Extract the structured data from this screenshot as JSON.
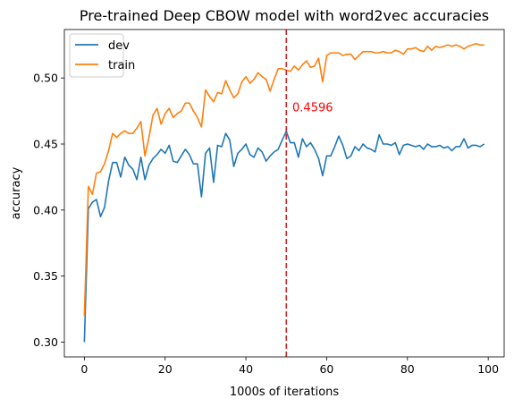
{
  "chart_data": {
    "type": "line",
    "title": "Pre-trained Deep CBOW model with word2vec accuracies",
    "xlabel": "1000s of iterations",
    "ylabel": "accuracy",
    "xlim": [
      -4.95,
      103.95
    ],
    "ylim": [
      0.2888,
      0.5367
    ],
    "xticks": [
      0,
      20,
      40,
      60,
      80,
      100
    ],
    "yticks": [
      0.3,
      0.35,
      0.4,
      0.45,
      0.5
    ],
    "xtick_labels": [
      "0",
      "20",
      "40",
      "60",
      "80",
      "100"
    ],
    "ytick_labels": [
      "0.30",
      "0.35",
      "0.40",
      "0.45",
      "0.50"
    ],
    "grid": false,
    "legend_position": "top-left",
    "x": [
      0,
      1,
      2,
      3,
      4,
      5,
      6,
      7,
      8,
      9,
      10,
      11,
      12,
      13,
      14,
      15,
      16,
      17,
      18,
      19,
      20,
      21,
      22,
      23,
      24,
      25,
      26,
      27,
      28,
      29,
      30,
      31,
      32,
      33,
      34,
      35,
      36,
      37,
      38,
      39,
      40,
      41,
      42,
      43,
      44,
      45,
      46,
      47,
      48,
      49,
      50,
      51,
      52,
      53,
      54,
      55,
      56,
      57,
      58,
      59,
      60,
      61,
      62,
      63,
      64,
      65,
      66,
      67,
      68,
      69,
      70,
      71,
      72,
      73,
      74,
      75,
      76,
      77,
      78,
      79,
      80,
      81,
      82,
      83,
      84,
      85,
      86,
      87,
      88,
      89,
      90,
      91,
      92,
      93,
      94,
      95,
      96,
      97,
      98,
      99
    ],
    "series": [
      {
        "name": "dev",
        "color": "#1f77b4",
        "values": [
          0.3,
          0.401,
          0.406,
          0.408,
          0.395,
          0.402,
          0.422,
          0.436,
          0.436,
          0.425,
          0.44,
          0.434,
          0.431,
          0.423,
          0.44,
          0.423,
          0.434,
          0.439,
          0.442,
          0.446,
          0.443,
          0.449,
          0.437,
          0.436,
          0.441,
          0.446,
          0.442,
          0.435,
          0.435,
          0.41,
          0.443,
          0.447,
          0.421,
          0.449,
          0.448,
          0.458,
          0.453,
          0.433,
          0.443,
          0.446,
          0.45,
          0.442,
          0.44,
          0.447,
          0.444,
          0.437,
          0.441,
          0.444,
          0.446,
          0.453,
          0.4596,
          0.451,
          0.451,
          0.44,
          0.454,
          0.448,
          0.451,
          0.446,
          0.439,
          0.426,
          0.441,
          0.441,
          0.448,
          0.456,
          0.449,
          0.439,
          0.441,
          0.448,
          0.445,
          0.45,
          0.447,
          0.446,
          0.444,
          0.457,
          0.45,
          0.45,
          0.449,
          0.451,
          0.442,
          0.449,
          0.45,
          0.449,
          0.448,
          0.449,
          0.446,
          0.45,
          0.448,
          0.448,
          0.449,
          0.447,
          0.448,
          0.445,
          0.448,
          0.448,
          0.454,
          0.447,
          0.449,
          0.449,
          0.448,
          0.45
        ]
      },
      {
        "name": "train",
        "color": "#ff7f0e",
        "values": [
          0.32,
          0.418,
          0.412,
          0.428,
          0.429,
          0.435,
          0.445,
          0.458,
          0.455,
          0.458,
          0.46,
          0.458,
          0.458,
          0.462,
          0.467,
          0.441,
          0.455,
          0.472,
          0.477,
          0.465,
          0.473,
          0.477,
          0.47,
          0.473,
          0.475,
          0.481,
          0.481,
          0.475,
          0.47,
          0.463,
          0.491,
          0.486,
          0.482,
          0.489,
          0.488,
          0.498,
          0.491,
          0.485,
          0.488,
          0.497,
          0.501,
          0.496,
          0.499,
          0.504,
          0.501,
          0.499,
          0.49,
          0.499,
          0.507,
          0.507,
          0.506,
          0.505,
          0.509,
          0.506,
          0.51,
          0.513,
          0.508,
          0.509,
          0.515,
          0.497,
          0.517,
          0.519,
          0.519,
          0.519,
          0.517,
          0.518,
          0.518,
          0.514,
          0.517,
          0.52,
          0.52,
          0.52,
          0.519,
          0.519,
          0.52,
          0.519,
          0.519,
          0.521,
          0.52,
          0.518,
          0.522,
          0.522,
          0.523,
          0.521,
          0.52,
          0.524,
          0.521,
          0.524,
          0.523,
          0.524,
          0.525,
          0.524,
          0.525,
          0.524,
          0.522,
          0.524,
          0.525,
          0.526,
          0.525,
          0.525
        ]
      }
    ],
    "vline": {
      "x": 50,
      "color": "#d62728"
    },
    "annotation": {
      "x": 51.5,
      "y": 0.4746,
      "text": "0.4596",
      "color": "#ff0000"
    }
  }
}
